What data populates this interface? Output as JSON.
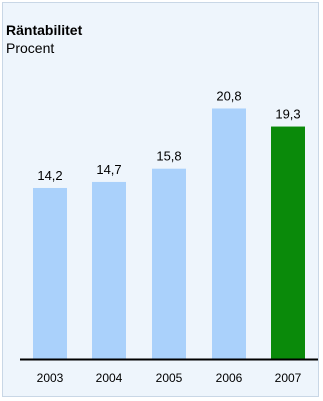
{
  "chart_data": {
    "type": "bar",
    "title": "Räntabilitet",
    "subtitle": "Procent",
    "categories": [
      "2003",
      "2004",
      "2005",
      "2006",
      "2007"
    ],
    "values": [
      14.2,
      14.7,
      15.8,
      20.8,
      19.3
    ],
    "value_labels": [
      "14,2",
      "14,7",
      "15,8",
      "20,8",
      "19,3"
    ],
    "ylim": [
      0,
      22.5
    ],
    "grid": false,
    "colors": {
      "bar": "#aad1fb",
      "highlight_bar": "#0a8a0a",
      "highlight_index": 4,
      "background": "#eef5fc",
      "axis": "#000000"
    }
  }
}
